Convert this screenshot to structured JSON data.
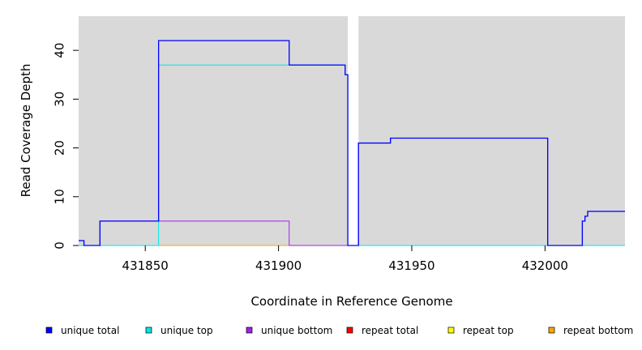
{
  "chart_data": {
    "type": "line",
    "xlabel": "Coordinate in Reference Genome",
    "ylabel": "Read Coverage Depth",
    "xlim": [
      431825,
      432030
    ],
    "ylim": [
      0,
      47
    ],
    "x_ticks": [
      431850,
      431900,
      431950,
      432000
    ],
    "y_ticks": [
      0,
      10,
      20,
      30,
      40
    ],
    "grid": false,
    "background": "#d9d9d9",
    "gaps": [
      [
        431926,
        431930
      ]
    ],
    "legend_position": "bottom",
    "series": [
      {
        "name": "unique total",
        "color": "#0000ff",
        "steps": [
          [
            431825,
            1
          ],
          [
            431827,
            0
          ],
          [
            431833,
            5
          ],
          [
            431855,
            42
          ],
          [
            431904,
            37
          ],
          [
            431925,
            35
          ],
          [
            431926,
            0
          ],
          [
            431930,
            21
          ],
          [
            431942,
            22
          ],
          [
            432001,
            0
          ],
          [
            432014,
            5
          ],
          [
            432015,
            6
          ],
          [
            432016,
            7
          ],
          [
            432030,
            7
          ]
        ]
      },
      {
        "name": "unique top",
        "color": "#00e5e5",
        "steps": [
          [
            431825,
            0
          ],
          [
            431855,
            37
          ],
          [
            431925,
            35
          ],
          [
            431926,
            0
          ],
          [
            432030,
            0
          ]
        ]
      },
      {
        "name": "unique bottom",
        "color": "#a020f0",
        "steps": [
          [
            431825,
            1
          ],
          [
            431827,
            0
          ],
          [
            431833,
            5
          ],
          [
            431904,
            0
          ],
          [
            431930,
            21
          ],
          [
            431942,
            22
          ],
          [
            432001,
            0
          ],
          [
            432014,
            5
          ],
          [
            432015,
            6
          ],
          [
            432016,
            7
          ],
          [
            432030,
            7
          ]
        ]
      },
      {
        "name": "repeat total",
        "color": "#ff0000",
        "steps": [
          [
            431825,
            0
          ],
          [
            432030,
            0
          ]
        ]
      },
      {
        "name": "repeat top",
        "color": "#ffff00",
        "steps": [
          [
            431825,
            0
          ],
          [
            432030,
            0
          ]
        ]
      },
      {
        "name": "repeat bottom",
        "color": "#ffa500",
        "steps": [
          [
            431825,
            0
          ],
          [
            432030,
            0
          ]
        ]
      }
    ]
  }
}
